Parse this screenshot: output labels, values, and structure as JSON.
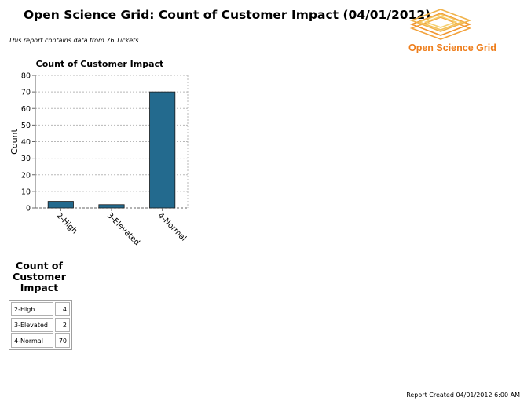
{
  "header": {
    "title": "Open Science Grid: Count of Customer Impact (04/01/2012)",
    "note": "This report contains data from 76 Tickets."
  },
  "logo": {
    "text": "Open Science Grid",
    "color": "#ee7d1a"
  },
  "chart_data": {
    "type": "bar",
    "title": "Count of Customer Impact",
    "xlabel": "",
    "ylabel": "Count",
    "categories": [
      "2-High",
      "3-Elevated",
      "4-Normal"
    ],
    "values": [
      4,
      2,
      70
    ],
    "ylim": [
      0,
      80
    ],
    "yticks": [
      0,
      10,
      20,
      30,
      40,
      50,
      60,
      70,
      80
    ],
    "grid": true,
    "bar_color": "#236a8e"
  },
  "table": {
    "title": "Count of Customer Impact",
    "rows": [
      {
        "label": "2-High",
        "value": "4"
      },
      {
        "label": "3-Elevated",
        "value": "2"
      },
      {
        "label": "4-Normal",
        "value": "70"
      }
    ]
  },
  "footer": {
    "created": "Report Created 04/01/2012 6:00 AM"
  }
}
